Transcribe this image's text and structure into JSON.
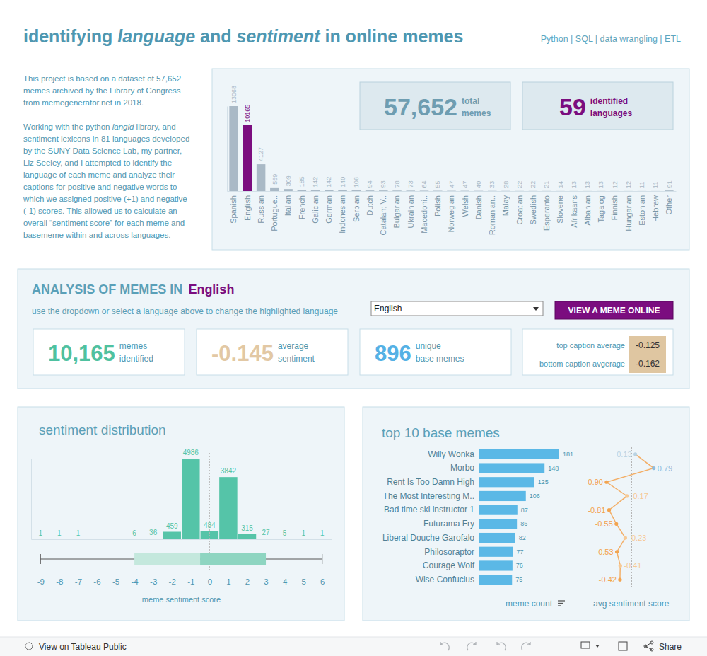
{
  "header": {
    "title_parts": [
      {
        "text": "identifying ",
        "italic": false
      },
      {
        "text": "language",
        "italic": true
      },
      {
        "text": " and ",
        "italic": false
      },
      {
        "text": "sentiment",
        "italic": true
      },
      {
        "text": " in online memes",
        "italic": false
      }
    ],
    "tags": "Python | SQL | data wrangling | ETL"
  },
  "description": [
    [
      {
        "text": "This project is based on a dataset of 57,652 memes archived by the Library of Congress from memegenerator.net in 2018.",
        "italic": false
      }
    ],
    [
      {
        "text": "Working with the python ",
        "italic": false
      },
      {
        "text": "langid",
        "italic": true
      },
      {
        "text": " library, and sentiment lexicons in 81 languages developed by the SUNY Data Science Lab, my partner, Liz Seeley, and I attempted to identify the language of each meme and analyze their captions for positive and negative words to which we assigned positive (+1) and negative (-1) scores. This allowed us to calculate an overall “sentiment score” for each meme and basememe within and across languages.",
        "italic": false
      }
    ]
  ],
  "kpis": [
    {
      "value": "57,652",
      "label_lines": [
        "total",
        "memes"
      ]
    },
    {
      "value": "59",
      "label_lines": [
        "identified",
        "languages"
      ]
    }
  ],
  "analysis": {
    "heading": "ANALYSIS OF MEMES IN",
    "language": "English",
    "instruction": "use the dropdown or select a language above to change the highlighted language",
    "dropdown": "English",
    "button": "VIEW A MEME ONLINE",
    "kpis": [
      {
        "value": "10,165",
        "label_lines": [
          "memes",
          "identified"
        ]
      },
      {
        "value": "-0.145",
        "label_lines": [
          "average",
          "sentiment"
        ]
      },
      {
        "value": "896",
        "label_lines": [
          "unique",
          "base memes"
        ]
      }
    ],
    "captions": [
      {
        "label": "top caption average",
        "value": "-0.125"
      },
      {
        "label": "bottom caption avgerage",
        "value": "-0.162"
      }
    ]
  },
  "footer": {
    "left": "View on Tableau Public",
    "right": "Share"
  },
  "chart_data": [
    {
      "type": "bar",
      "categories": [
        "Spanish",
        "English",
        "Russian",
        "Portugue..",
        "Italian",
        "French",
        "Galician",
        "German",
        "Indonesian",
        "Serbian",
        "Dutch",
        "Catalan; V..",
        "Bulgarian",
        "Ukrainian",
        "Macedoni..",
        "Polish",
        "Norwegian",
        "Welsh",
        "Danish",
        "Romanian..",
        "Malay",
        "Croatian",
        "Swedish",
        "Esperanto",
        "Slovene",
        "Afrikaans",
        "Albanian",
        "Tagalog",
        "Finnish",
        "Hungarian",
        "Estonian",
        "Hebrew",
        "Other"
      ],
      "values": [
        13068,
        10165,
        4127,
        559,
        309,
        185,
        142,
        142,
        140,
        106,
        94,
        93,
        78,
        73,
        64,
        55,
        47,
        47,
        40,
        33,
        28,
        22,
        22,
        21,
        14,
        13,
        13,
        13,
        12,
        12,
        11,
        11,
        91
      ],
      "colors": [
        "#a9b9c6",
        "#7b0d7f",
        "#a9b9c6",
        "#a9b9c6",
        "#a9b9c6",
        "#a9b9c6",
        "#a9b9c6",
        "#a9b9c6",
        "#a9b9c6",
        "#a9b9c6",
        "#a9b9c6",
        "#a9b9c6",
        "#a9b9c6",
        "#a9b9c6",
        "#a9b9c6",
        "#a9b9c6",
        "#a9b9c6",
        "#a9b9c6",
        "#a9b9c6",
        "#a9b9c6",
        "#a9b9c6",
        "#a9b9c6",
        "#a9b9c6",
        "#a9b9c6",
        "#a9b9c6",
        "#a9b9c6",
        "#a9b9c6",
        "#a9b9c6",
        "#a9b9c6",
        "#a9b9c6",
        "#a9b9c6",
        "#a9b9c6",
        "#a9b9c6"
      ],
      "data_labels": true,
      "ylim": [
        0,
        13068
      ],
      "yticks": [],
      "tick_labels": "x"
    },
    {
      "type": "bar",
      "title": "sentiment distribution",
      "xlabel": "meme sentiment score",
      "x": [
        -9,
        -8,
        -7,
        -4,
        -3,
        -2,
        -1,
        0,
        1,
        2,
        3,
        4,
        5,
        6
      ],
      "values": [
        1,
        1,
        1,
        6,
        36,
        459,
        4986,
        484,
        3842,
        315,
        27,
        5,
        1,
        1
      ],
      "color": "#55c4a8",
      "data_labels": true,
      "xlim": [
        -9.5,
        6.5
      ],
      "xticks": [
        -9,
        -8,
        -7,
        -6,
        -5,
        -4,
        -3,
        -2,
        -1,
        0,
        1,
        2,
        3,
        4,
        5,
        6
      ],
      "ylim": [
        0,
        4986
      ],
      "yticks": [],
      "tick_labels": "x",
      "box": {
        "min": -9,
        "q1": -4,
        "median": -0.5,
        "q3": 3,
        "max": 6
      },
      "reference_line": 0
    },
    {
      "type": "bar",
      "orientation": "horizontal",
      "title": "top 10 base memes",
      "xlabel": "meme count",
      "categories": [
        "Willy Wonka",
        "Morbo",
        "Rent Is Too Damn High",
        "The Most Interesting M..",
        "Bad time ski instructor 1",
        "Futurama Fry",
        "Liberal Douche Garofalo",
        "Philosoraptor",
        "Courage Wolf",
        "Wise Confucius"
      ],
      "values": [
        181,
        148,
        125,
        106,
        87,
        86,
        82,
        77,
        76,
        75
      ],
      "color": "#5bb8e6",
      "data_labels": true,
      "xlim": [
        0,
        181
      ],
      "xticks": [],
      "tick_labels": "y"
    },
    {
      "type": "line",
      "orientation": "horizontal",
      "xlabel": "avg sentiment score",
      "values": [
        0.13,
        0.79,
        -0.9,
        -0.17,
        -0.81,
        -0.55,
        -0.23,
        -0.53,
        -0.41,
        -0.42
      ],
      "value_labels": [
        "0.13",
        "0.79",
        "-0.90",
        "-0.17",
        "-0.81",
        "-0.55",
        "-0.23",
        "-0.53",
        "-0.41",
        "-0.42"
      ],
      "color": "#f3b06a",
      "colors": [
        "#b9d3e3",
        "#8dbde0",
        "#f3a44f",
        "#f6c995",
        "#f3a44f",
        "#f3a44f",
        "#f6c995",
        "#f3a44f",
        "#f6c995",
        "#f3a44f"
      ],
      "marker": "circle",
      "data_labels": true,
      "xlim": [
        -1,
        1
      ],
      "xticks": [],
      "tick_labels": false,
      "reference_line": 0
    }
  ]
}
